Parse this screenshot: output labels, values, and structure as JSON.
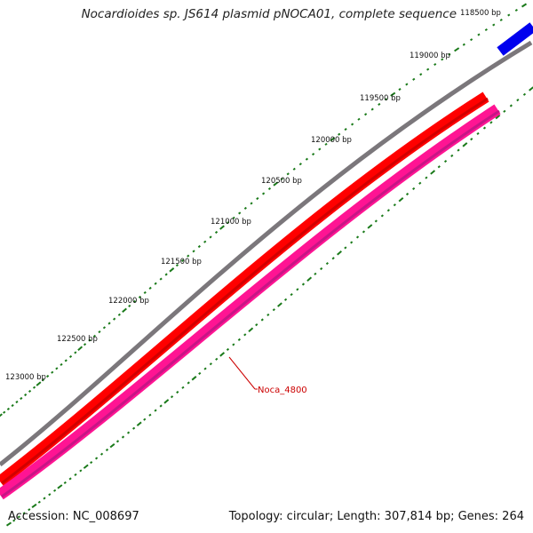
{
  "title": "Nocardioides sp. JS614 plasmid pNOCA01, complete sequence",
  "footer": {
    "accession": "Accession: NC_008697",
    "summary": "Topology: circular; Length: 307,814 bp; Genes: 264"
  },
  "colors": {
    "backbone": "#7b777b",
    "gene_red": "#ff0000",
    "gene_pink": "#ff1493",
    "gene_blue": "#0000ee",
    "ticks": "#1a7a1a",
    "callout": "#cc0000"
  },
  "ticks": [
    {
      "label": "118500 bp"
    },
    {
      "label": "119000 bp"
    },
    {
      "label": "119500 bp"
    },
    {
      "label": "120000 bp"
    },
    {
      "label": "120500 bp"
    },
    {
      "label": "121000 bp"
    },
    {
      "label": "121500 bp"
    },
    {
      "label": "122000 bp"
    },
    {
      "label": "122500 bp"
    },
    {
      "label": "123000 bp"
    }
  ],
  "genes": [
    {
      "name": "Noca_4800",
      "color": "pink",
      "labeled": true
    }
  ]
}
